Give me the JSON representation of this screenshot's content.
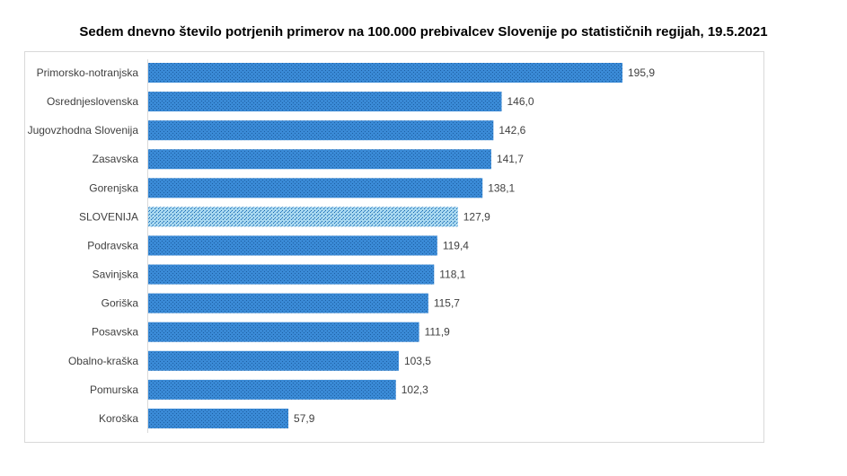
{
  "chart_data": {
    "type": "bar",
    "orientation": "horizontal",
    "title": "Sedem dnevno število potrjenih primerov na 100.000 prebivalcev Slovenije po statističnih regijah, 19.5.2021",
    "categories": [
      "Primorsko-notranjska",
      "Osrednjeslovenska",
      "Jugovzhodna Slovenija",
      "Zasavska",
      "Gorenjska",
      "SLOVENIJA",
      "Podravska",
      "Savinjska",
      "Goriška",
      "Posavska",
      "Obalno-kraška",
      "Pomurska",
      "Koroška"
    ],
    "values": [
      195.9,
      146.0,
      142.6,
      141.7,
      138.1,
      127.9,
      119.4,
      118.1,
      115.7,
      111.9,
      103.5,
      102.3,
      57.9
    ],
    "value_labels": [
      "195,9",
      "146,0",
      "142,6",
      "141,7",
      "138,1",
      "127,9",
      "119,4",
      "118,1",
      "115,7",
      "111,9",
      "103,5",
      "102,3",
      "57,9"
    ],
    "highlight": "SLOVENIJA",
    "xlim": [
      0,
      200
    ],
    "grid": false,
    "legend": "none",
    "colors": {
      "bar": "#3a8ad6",
      "bar_dots": "#1d5fa3",
      "highlight": "#9fd3ef",
      "highlight_dots": "#1d6aa8"
    }
  }
}
